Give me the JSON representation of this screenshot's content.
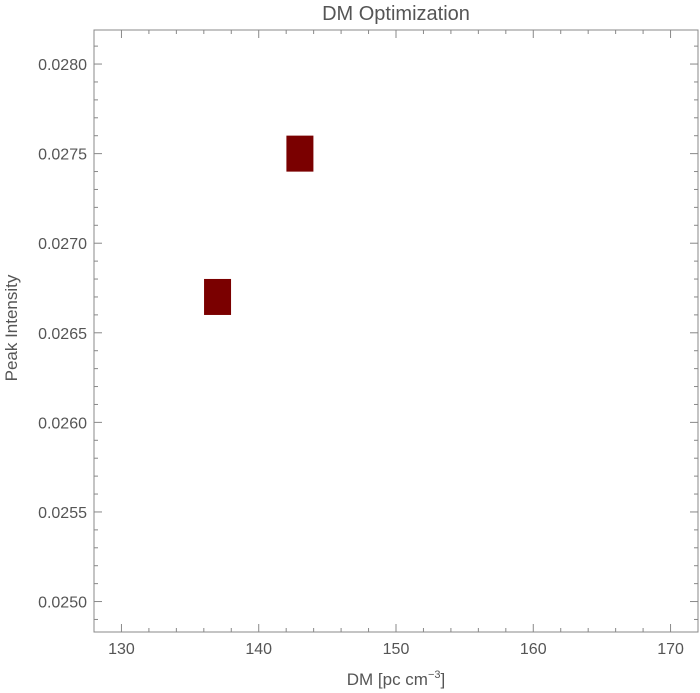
{
  "chart_data": {
    "type": "scatter",
    "title": "DM Optimization",
    "xlabel": {
      "main": "DM [pc cm",
      "sup": "−3",
      "close": "]"
    },
    "ylabel": "Peak Intensity",
    "xlim": [
      128,
      172
    ],
    "ylim": [
      0.02483,
      0.02819
    ],
    "x_ticks": [
      130,
      140,
      150,
      160,
      170
    ],
    "x_tick_labels": [
      "130",
      "140",
      "150",
      "160",
      "170"
    ],
    "y_ticks": [
      0.025,
      0.0255,
      0.026,
      0.0265,
      0.027,
      0.0275,
      0.028
    ],
    "y_tick_labels": [
      "0.0250",
      "0.0255",
      "0.0260",
      "0.0265",
      "0.0270",
      "0.0275",
      "0.0280"
    ],
    "grid": false,
    "marker": "square",
    "marker_color": "#7a0000",
    "points": [
      {
        "x": 137,
        "y": 0.0267
      },
      {
        "x": 143,
        "y": 0.0275
      }
    ]
  }
}
